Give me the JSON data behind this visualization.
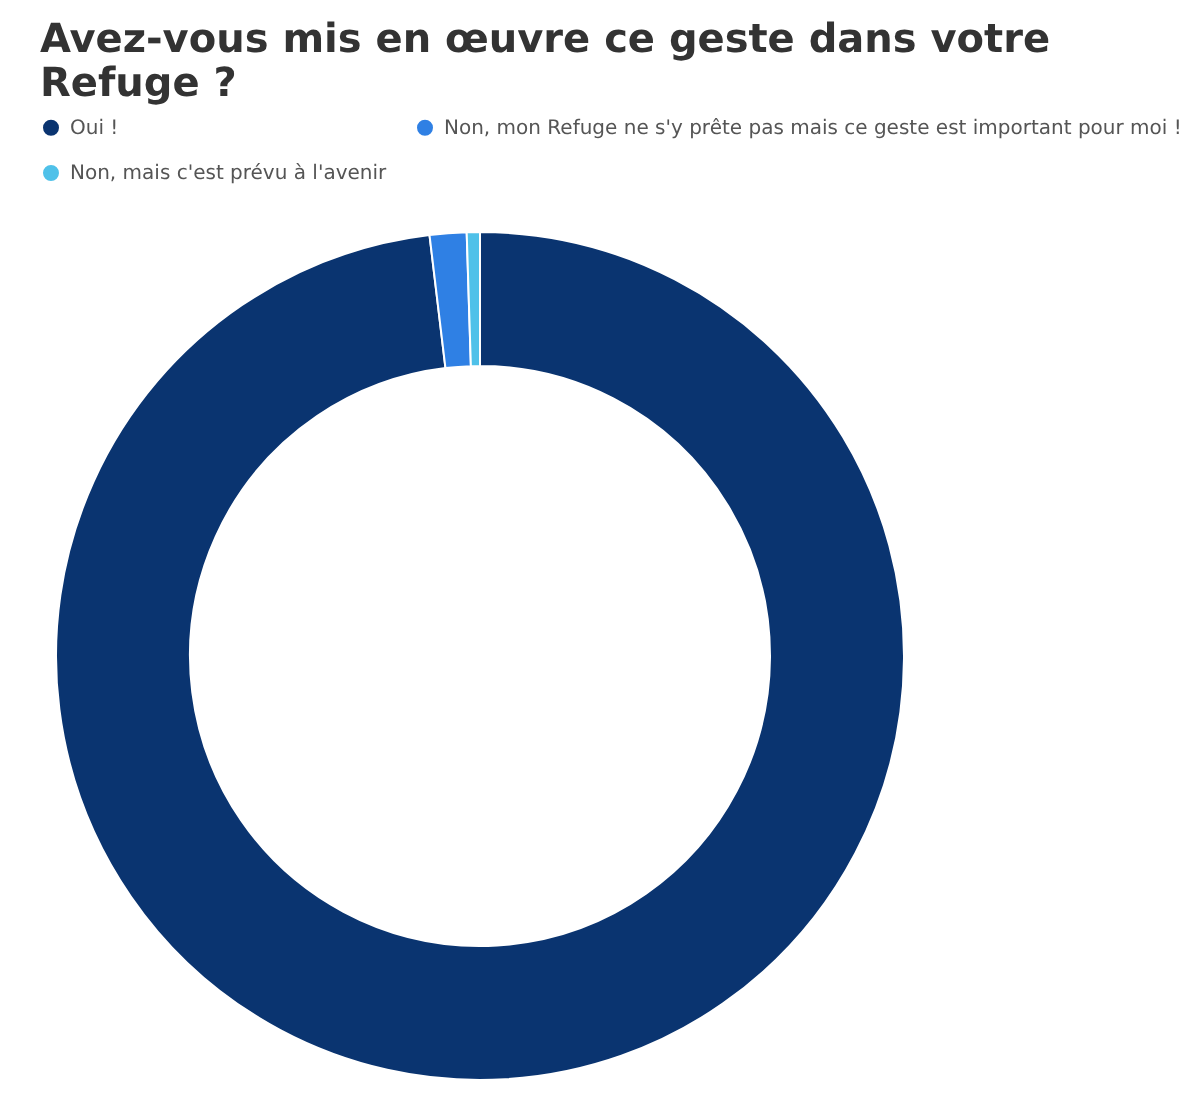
{
  "chart_data": {
    "type": "donut",
    "title": "Avez-vous mis en œuvre ce geste dans votre Refuge ?",
    "categories": [
      "Oui !",
      "Non, mon Refuge ne s'y prête pas mais ce geste est important pour moi !",
      "Non, mais c'est prévu à l'avenir"
    ],
    "values": [
      98.1,
      1.4,
      0.5
    ],
    "colors": [
      "#0a3470",
      "#2f80e4",
      "#4fc1e9"
    ],
    "legend": "top"
  }
}
